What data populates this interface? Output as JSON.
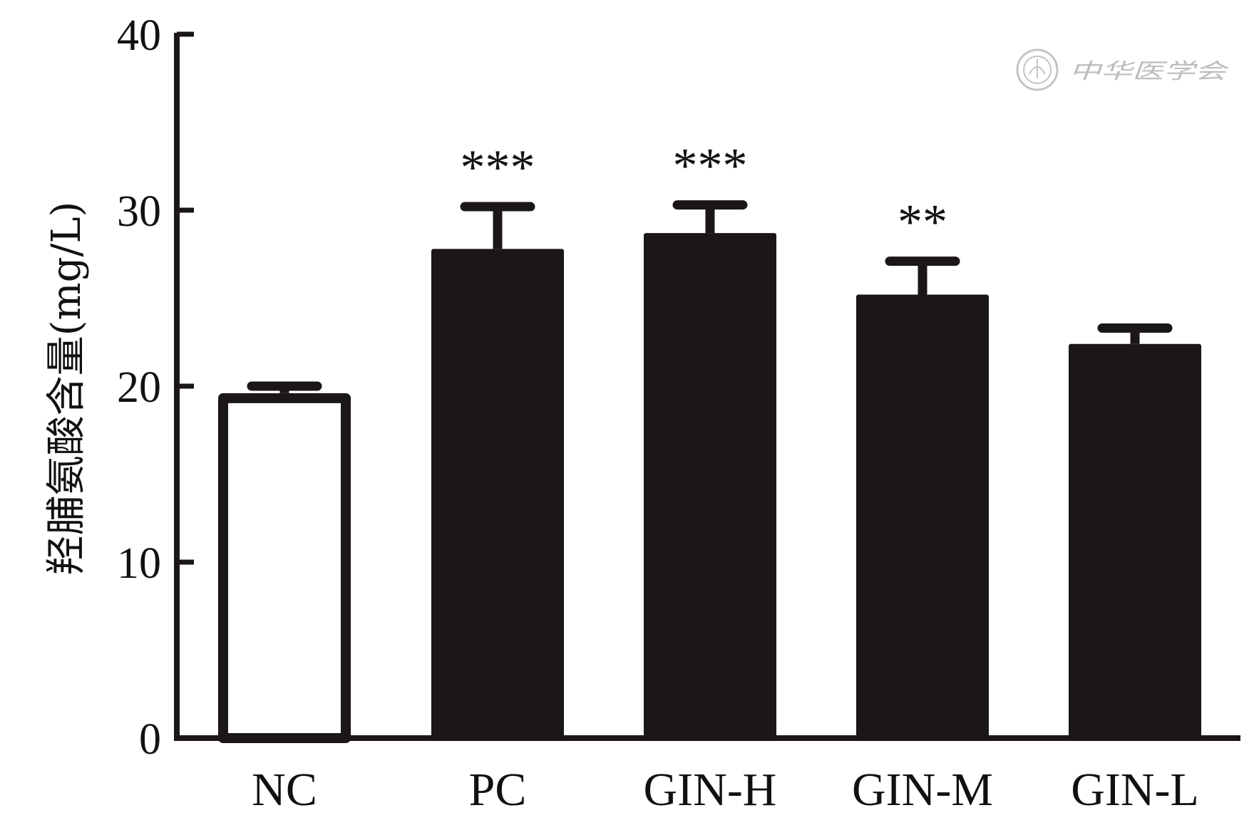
{
  "chart_data": {
    "type": "bar",
    "title": "",
    "xlabel": "",
    "ylabel": "羟脯氨酸含量(mg/L)",
    "ylim": [
      0,
      40
    ],
    "yticks": [
      "0",
      "10",
      "20",
      "30",
      "40"
    ],
    "grid": false,
    "categories": [
      "NC",
      "PC",
      "GIN-H",
      "GIN-M",
      "GIN-L"
    ],
    "values": [
      19.6,
      27.8,
      28.7,
      25.2,
      22.4
    ],
    "errors": [
      0.4,
      2.4,
      1.6,
      1.9,
      0.9
    ],
    "significance": [
      "",
      "***",
      "***",
      "**",
      ""
    ],
    "bar_colors": [
      "#ffffff",
      "#1a1716",
      "#1a1716",
      "#1a1716",
      "#1a1716"
    ],
    "edge_color": "#1a1716"
  },
  "watermark": {
    "text": "中华医学会",
    "color": "#bdbdbd",
    "icon": "society-seal-icon"
  }
}
